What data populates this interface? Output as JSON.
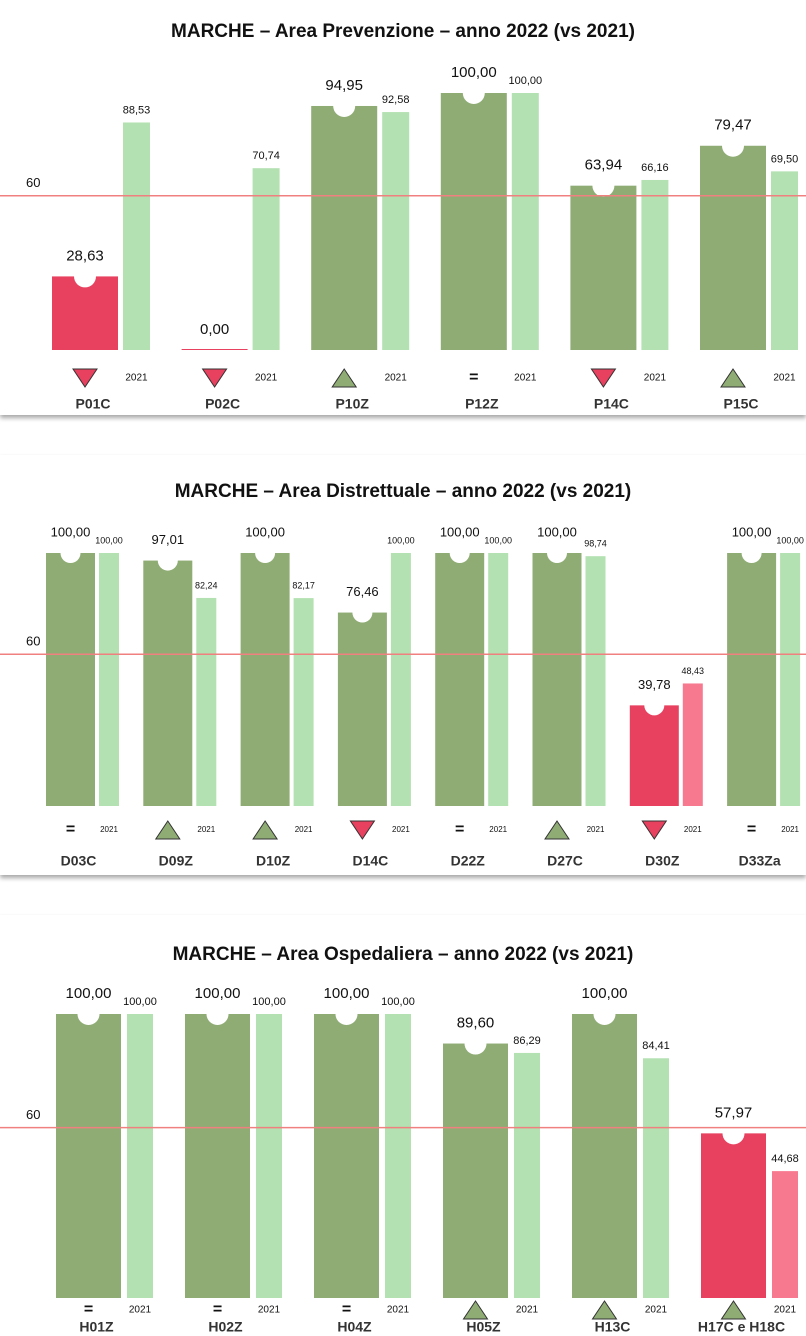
{
  "chart_data": [
    {
      "type": "bar",
      "title": "MARCHE  – Area Prevenzione – anno 2022 (vs 2021)",
      "threshold": 60,
      "ylim": [
        0,
        100
      ],
      "categories": [
        "P01C",
        "P02C",
        "P10Z",
        "P12Z",
        "P14C",
        "P15C"
      ],
      "trends": [
        "down",
        "down",
        "up",
        "=",
        "down",
        "up"
      ],
      "series": [
        {
          "color": "#8fac74",
          "below_color": "#e8405f",
          "values": [
            28.63,
            0,
            94.95,
            100,
            63.94,
            79.47
          ],
          "value_labels": [
            "28,63",
            "0,00",
            "94,95",
            "100,00",
            "63,94",
            "79,47"
          ]
        },
        {
          "name": "2021",
          "color": "#b3e1b1",
          "below_color": "#f7798f",
          "values": [
            88.53,
            70.74,
            92.58,
            100,
            66.16,
            69.5
          ],
          "value_labels": [
            "88,53",
            "70,74",
            "92,58",
            "100,00",
            "66,16",
            "69,50"
          ]
        }
      ]
    },
    {
      "type": "bar",
      "title": "MARCHE  – Area Distrettuale – anno 2022 (vs 2021)",
      "threshold": 60,
      "ylim": [
        0,
        100
      ],
      "categories": [
        "D03C",
        "D09Z",
        "D10Z",
        "D14C",
        "D22Z",
        "D27C",
        "D30Z",
        "D33Za"
      ],
      "trends": [
        "=",
        "up",
        "up",
        "down",
        "=",
        "up",
        "down",
        "="
      ],
      "series": [
        {
          "color": "#8fac74",
          "below_color": "#e8405f",
          "values": [
            100,
            97.01,
            100,
            76.46,
            100,
            100,
            39.78,
            100
          ],
          "value_labels": [
            "100,00",
            "97,01",
            "100,00",
            "76,46",
            "100,00",
            "100,00",
            "39,78",
            "100,00"
          ]
        },
        {
          "name": "2021",
          "color": "#b3e1b1",
          "below_color": "#f7798f",
          "values": [
            100,
            82.24,
            82.17,
            100,
            100,
            98.74,
            48.43,
            100
          ],
          "value_labels": [
            "100,00",
            "82,24",
            "82,17",
            "100,00",
            "100,00",
            "98,74",
            "48,43",
            "100,00"
          ]
        }
      ]
    },
    {
      "type": "bar",
      "title": "MARCHE  – Area Ospedaliera – anno 2022 (vs 2021)",
      "threshold": 60,
      "ylim": [
        0,
        100
      ],
      "categories": [
        "H01Z",
        "H02Z",
        "H04Z",
        "H05Z",
        "H13C",
        "H17C e H18C"
      ],
      "trends": [
        "=",
        "=",
        "=",
        "up",
        "up",
        "up"
      ],
      "series": [
        {
          "color": "#8fac74",
          "below_color": "#e8405f",
          "values": [
            100,
            100,
            100,
            89.6,
            100,
            57.97
          ],
          "value_labels": [
            "100,00",
            "100,00",
            "100,00",
            "89,60",
            "100,00",
            "57,97"
          ]
        },
        {
          "name": "2021",
          "color": "#b3e1b1",
          "below_color": "#f7798f",
          "values": [
            100,
            100,
            100,
            86.29,
            84.41,
            44.68
          ],
          "value_labels": [
            "100,00",
            "100,00",
            "100,00",
            "86,29",
            "84,41",
            "44,68"
          ]
        }
      ]
    }
  ]
}
